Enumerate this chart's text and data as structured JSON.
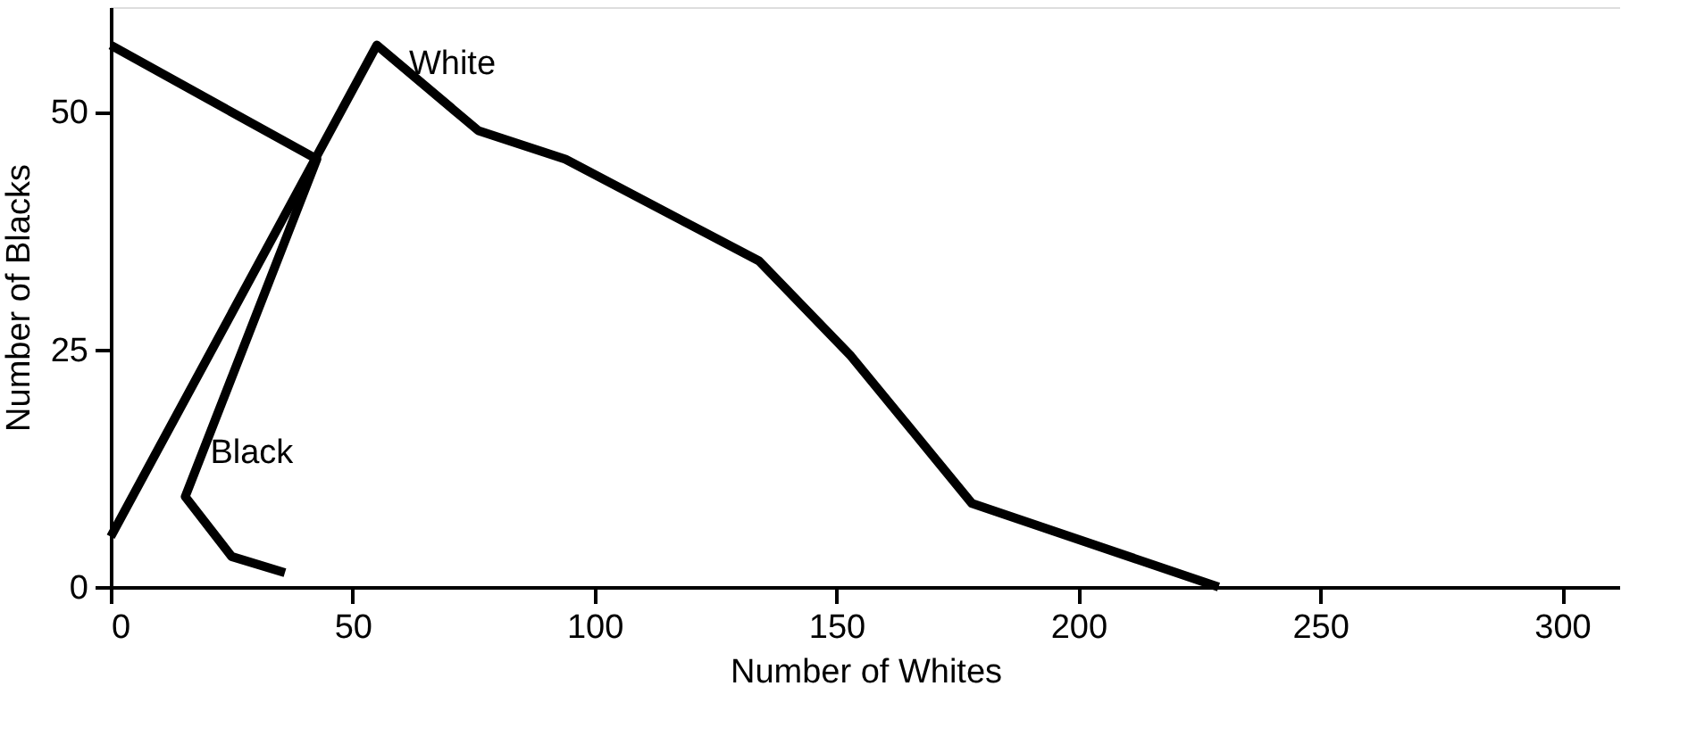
{
  "chart_data": {
    "type": "line",
    "xlabel": "Number of Whites",
    "ylabel": "Number of Blacks",
    "xlim": [
      0,
      312
    ],
    "ylim": [
      0,
      61
    ],
    "xticks": [
      0,
      50,
      100,
      150,
      200,
      250,
      300
    ],
    "yticks": [
      0,
      25,
      50
    ],
    "grid": false,
    "legend": false,
    "marker": "none",
    "line_style": "solid",
    "series": [
      {
        "name": "White",
        "color": "#000000",
        "x": [
          0,
          55,
          76,
          94,
          134,
          153,
          178,
          229
        ],
        "values": [
          5.3,
          57,
          48,
          45,
          34.3,
          24.3,
          8.8,
          0
        ]
      },
      {
        "name": "Black",
        "color": "#000000",
        "x": [
          0,
          42.6,
          15.4,
          25,
          36
        ],
        "values": [
          57,
          45,
          9.5,
          3.2,
          1.5
        ]
      }
    ]
  }
}
